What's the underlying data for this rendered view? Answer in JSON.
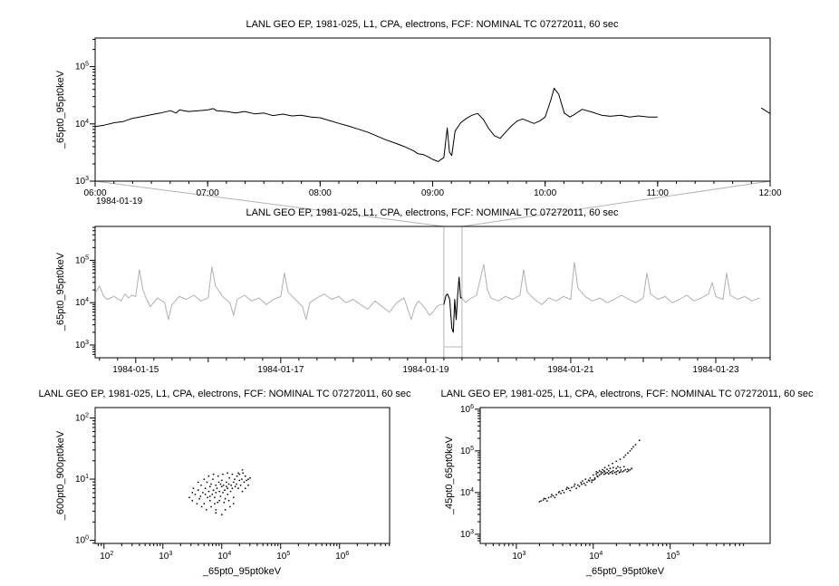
{
  "window": {
    "background": "#ffffff"
  },
  "colors": {
    "axis": "#000000",
    "series": "#000000",
    "context_line": "#b0b0b0",
    "highlight": "#000000",
    "connector": "#b4b4b4",
    "scatter": "#111111"
  },
  "chart_data": [
    {
      "id": "zoom-timeseries",
      "type": "line",
      "title": "LANL GEO EP, 1981-025, L1, CPA, electrons, FCF: NOMINAL TC 07272011, 60 sec",
      "ylabel": "_65pt0_95pt0keV",
      "xlabel": "",
      "x_context_label": "1984-01-19",
      "xlim": [
        6,
        12
      ],
      "x_minor_step": 0.1666667,
      "x_ticks": [
        {
          "v": 6,
          "label": "06:00"
        },
        {
          "v": 7,
          "label": "07:00"
        },
        {
          "v": 8,
          "label": "08:00"
        },
        {
          "v": 9,
          "label": "09:00"
        },
        {
          "v": 10,
          "label": "10:00"
        },
        {
          "v": 11,
          "label": "11:00"
        },
        {
          "v": 12,
          "label": "12:00"
        }
      ],
      "ylim_log": [
        3,
        5.5
      ],
      "ylog_ticks": [
        3,
        4,
        5
      ],
      "line_color": "#000000",
      "x": [
        6.0,
        6.08,
        6.17,
        6.25,
        6.33,
        6.42,
        6.5,
        6.58,
        6.67,
        6.72,
        6.75,
        6.83,
        6.92,
        7.0,
        7.05,
        7.08,
        7.17,
        7.25,
        7.33,
        7.42,
        7.5,
        7.58,
        7.67,
        7.75,
        7.83,
        7.92,
        8.0,
        8.08,
        8.17,
        8.25,
        8.33,
        8.42,
        8.5,
        8.58,
        8.67,
        8.75,
        8.83,
        8.87,
        8.92,
        8.97,
        9.0,
        9.05,
        9.1,
        9.13,
        9.15,
        9.17,
        9.2,
        9.25,
        9.3,
        9.35,
        9.4,
        9.45,
        9.5,
        9.55,
        9.6,
        9.65,
        9.7,
        9.75,
        9.8,
        9.85,
        9.9,
        9.95,
        10.0,
        10.05,
        10.08,
        10.12,
        10.17,
        10.22,
        10.25,
        10.3,
        10.33,
        10.42,
        10.5,
        10.58,
        10.67,
        10.75,
        10.83,
        10.92,
        11.0,
        11.5,
        11.92,
        11.97,
        12.0
      ],
      "y": [
        9000,
        9500,
        10500,
        11000,
        12500,
        13500,
        14500,
        15500,
        17000,
        15500,
        17500,
        16500,
        17000,
        17500,
        18500,
        17000,
        16500,
        15500,
        16500,
        15000,
        15500,
        14000,
        14800,
        13800,
        14200,
        13200,
        12800,
        11500,
        10200,
        9200,
        8200,
        7200,
        6200,
        5300,
        4600,
        4000,
        3400,
        3000,
        2900,
        2600,
        2400,
        2200,
        2600,
        8500,
        3200,
        2800,
        7500,
        10500,
        12500,
        14200,
        15200,
        12000,
        8200,
        6200,
        5600,
        7200,
        9200,
        11200,
        12200,
        11200,
        10200,
        11200,
        13200,
        26000,
        42000,
        33000,
        15500,
        13200,
        14200,
        16500,
        18000,
        16000,
        14200,
        13600,
        14200,
        13200,
        13800,
        13200,
        13200,
        null,
        19000,
        16500,
        15200
      ]
    },
    {
      "id": "context-timeseries",
      "type": "line",
      "title": "LANL GEO EP, 1981-025, L1, CPA, electrons, FCF: NOMINAL TC 07272011, 60 sec",
      "ylabel": "_65pt0_95pt0keV",
      "xlabel": "",
      "xlim": [
        14.44,
        23.75
      ],
      "x_minor_step": 0.25,
      "x_ticks": [
        {
          "v": 15,
          "label": "1984-01-15"
        },
        {
          "v": 17,
          "label": "1984-01-17"
        },
        {
          "v": 19,
          "label": "1984-01-19"
        },
        {
          "v": 21,
          "label": "1984-01-21"
        },
        {
          "v": 23,
          "label": "1984-01-23"
        }
      ],
      "ylim_log": [
        2.7,
        5.8
      ],
      "ylog_ticks": [
        3,
        4,
        5
      ],
      "line_color": "#b0b0b0",
      "highlight_range": [
        19.25,
        19.5
      ],
      "highlight_color": "#000000",
      "zoom_box": true,
      "x": [
        14.45,
        14.5,
        14.55,
        14.6,
        14.7,
        14.8,
        14.85,
        14.9,
        14.95,
        15.0,
        15.05,
        15.1,
        15.15,
        15.2,
        15.3,
        15.4,
        15.45,
        15.5,
        15.6,
        15.7,
        15.8,
        15.9,
        16.0,
        16.05,
        16.1,
        16.2,
        16.3,
        16.35,
        16.4,
        16.5,
        16.6,
        16.7,
        16.8,
        16.9,
        17.0,
        17.05,
        17.1,
        17.2,
        17.3,
        17.35,
        17.4,
        17.5,
        17.6,
        17.7,
        17.8,
        17.9,
        18.0,
        18.1,
        18.2,
        18.3,
        18.4,
        18.5,
        18.6,
        18.7,
        18.8,
        18.85,
        18.9,
        18.95,
        19.0,
        19.05,
        19.1,
        19.15,
        19.2,
        19.25,
        19.28,
        19.3,
        19.33,
        19.36,
        19.38,
        19.4,
        19.42,
        19.44,
        19.46,
        19.48,
        19.5,
        19.55,
        19.6,
        19.7,
        19.8,
        19.85,
        19.9,
        20.0,
        20.1,
        20.2,
        20.3,
        20.35,
        20.4,
        20.5,
        20.6,
        20.7,
        20.8,
        20.9,
        21.0,
        21.05,
        21.1,
        21.2,
        21.3,
        21.4,
        21.5,
        21.6,
        21.7,
        21.8,
        21.9,
        22.0,
        22.05,
        22.1,
        22.2,
        22.3,
        22.4,
        22.5,
        22.6,
        22.7,
        22.8,
        22.9,
        22.95,
        23.0,
        23.1,
        23.15,
        23.2,
        23.3,
        23.4,
        23.5,
        23.6
      ],
      "y": [
        18000,
        25000,
        15000,
        12000,
        14000,
        11000,
        16000,
        13000,
        15000,
        14000,
        60000,
        20000,
        12000,
        8000,
        13000,
        10000,
        4000,
        9000,
        14000,
        12000,
        15000,
        11000,
        13000,
        70000,
        25000,
        14000,
        10000,
        5000,
        12000,
        15000,
        11000,
        13000,
        9000,
        12000,
        14000,
        50000,
        18000,
        12000,
        8000,
        4000,
        10000,
        13000,
        16000,
        12000,
        14000,
        10000,
        12000,
        9000,
        7000,
        11000,
        8000,
        6000,
        10000,
        13000,
        4000,
        8000,
        11000,
        9000,
        7000,
        5000,
        6000,
        8000,
        9000,
        9000,
        15000,
        16000,
        12000,
        2500,
        2000,
        12000,
        4000,
        15000,
        40000,
        13000,
        13000,
        10000,
        12000,
        15000,
        80000,
        20000,
        13000,
        11000,
        14000,
        12000,
        15000,
        60000,
        18000,
        12000,
        9000,
        13000,
        11000,
        14000,
        12000,
        90000,
        22000,
        14000,
        11000,
        13000,
        10000,
        12000,
        15000,
        12000,
        10000,
        13000,
        50000,
        16000,
        12000,
        14000,
        10000,
        12000,
        15000,
        11000,
        13000,
        16000,
        30000,
        14000,
        12000,
        50000,
        15000,
        12000,
        14000,
        11000,
        13000
      ]
    },
    {
      "id": "scatter-600-900",
      "type": "scatter",
      "title": "LANL GEO EP, 1981-025, L1, CPA, electrons, FCF: NOMINAL TC 07272011, 60 sec",
      "xlabel": "_65pt0_95pt0keV",
      "ylabel": "_600pt0_900pt0keV",
      "xlim": [
        1.85,
        6.85
      ],
      "xlog_ticks": [
        2,
        3,
        4,
        5,
        6
      ],
      "ylim_log": [
        -0.05,
        2.17
      ],
      "ylog_ticks": [
        0,
        1,
        2
      ],
      "points_log10": [
        [
          3.45,
          0.7
        ],
        [
          3.5,
          0.65
        ],
        [
          3.5,
          0.78
        ],
        [
          3.52,
          0.85
        ],
        [
          3.55,
          0.75
        ],
        [
          3.58,
          0.6
        ],
        [
          3.6,
          0.82
        ],
        [
          3.6,
          0.95
        ],
        [
          3.62,
          0.68
        ],
        [
          3.64,
          0.72
        ],
        [
          3.65,
          0.9
        ],
        [
          3.66,
          0.55
        ],
        [
          3.68,
          0.78
        ],
        [
          3.7,
          0.6
        ],
        [
          3.7,
          1.0
        ],
        [
          3.72,
          0.85
        ],
        [
          3.72,
          0.75
        ],
        [
          3.74,
          0.5
        ],
        [
          3.75,
          0.95
        ],
        [
          3.76,
          0.7
        ],
        [
          3.78,
          0.8
        ],
        [
          3.78,
          1.05
        ],
        [
          3.8,
          0.88
        ],
        [
          3.8,
          0.65
        ],
        [
          3.8,
          0.72
        ],
        [
          3.82,
          0.92
        ],
        [
          3.82,
          0.55
        ],
        [
          3.84,
          0.75
        ],
        [
          3.85,
          1.0
        ],
        [
          3.86,
          0.82
        ],
        [
          3.86,
          1.08
        ],
        [
          3.88,
          0.7
        ],
        [
          3.88,
          0.6
        ],
        [
          3.9,
          0.9
        ],
        [
          3.9,
          0.78
        ],
        [
          3.9,
          0.5
        ],
        [
          3.9,
          0.45
        ],
        [
          3.92,
          0.85
        ],
        [
          3.93,
          0.62
        ],
        [
          3.94,
          1.05
        ],
        [
          3.95,
          0.95
        ],
        [
          3.96,
          0.8
        ],
        [
          3.96,
          0.65
        ],
        [
          3.98,
          0.72
        ],
        [
          3.98,
          0.92
        ],
        [
          4.0,
          0.88
        ],
        [
          4.0,
          0.98
        ],
        [
          4.0,
          0.42
        ],
        [
          4.02,
          0.78
        ],
        [
          4.02,
          1.08
        ],
        [
          4.03,
          0.9
        ],
        [
          4.04,
          0.62
        ],
        [
          4.05,
          0.82
        ],
        [
          4.06,
          0.68
        ],
        [
          4.06,
          0.5
        ],
        [
          4.08,
          0.95
        ],
        [
          4.08,
          0.88
        ],
        [
          4.1,
          0.85
        ],
        [
          4.1,
          0.75
        ],
        [
          4.1,
          1.1
        ],
        [
          4.12,
          0.92
        ],
        [
          4.12,
          0.65
        ],
        [
          4.13,
          1.02
        ],
        [
          4.14,
          0.55
        ],
        [
          4.15,
          0.8
        ],
        [
          4.16,
          0.9
        ],
        [
          4.18,
          0.85
        ],
        [
          4.18,
          1.08
        ],
        [
          4.2,
          0.95
        ],
        [
          4.2,
          0.7
        ],
        [
          4.2,
          0.6
        ],
        [
          4.22,
          1.0
        ],
        [
          4.23,
          0.88
        ],
        [
          4.25,
          0.92
        ],
        [
          4.26,
          1.05
        ],
        [
          4.28,
          0.85
        ],
        [
          4.28,
          1.1
        ],
        [
          4.3,
          0.98
        ],
        [
          4.3,
          1.08
        ],
        [
          4.32,
          0.9
        ],
        [
          4.34,
          1.0
        ],
        [
          4.35,
          0.8
        ],
        [
          4.35,
          1.15
        ],
        [
          4.36,
          1.1
        ],
        [
          4.38,
          0.95
        ],
        [
          4.4,
          1.05
        ],
        [
          4.4,
          0.85
        ],
        [
          4.42,
          0.98
        ],
        [
          4.45,
          1.0
        ],
        [
          4.45,
          0.9
        ],
        [
          4.48,
          1.02
        ]
      ]
    },
    {
      "id": "scatter-45-65",
      "type": "scatter",
      "title": "LANL GEO EP, 1981-025, L1, CPA, electrons, FCF: NOMINAL TC 07272011, 60 sec",
      "xlabel": "_65pt0_95pt0keV",
      "ylabel": "_45pt0_65pt0keV",
      "xlim": [
        2.53,
        6.3
      ],
      "xlog_ticks": [
        3,
        4,
        5
      ],
      "ylim_log": [
        2.78,
        6.04
      ],
      "ylog_ticks": [
        3,
        4,
        5,
        6
      ],
      "points_log10": [
        [
          3.3,
          3.78
        ],
        [
          3.32,
          3.8
        ],
        [
          3.35,
          3.82
        ],
        [
          3.36,
          3.86
        ],
        [
          3.38,
          3.85
        ],
        [
          3.4,
          3.8
        ],
        [
          3.42,
          3.88
        ],
        [
          3.45,
          3.9
        ],
        [
          3.46,
          3.95
        ],
        [
          3.48,
          3.92
        ],
        [
          3.5,
          3.88
        ],
        [
          3.52,
          3.95
        ],
        [
          3.55,
          4.0
        ],
        [
          3.56,
          4.02
        ],
        [
          3.58,
          3.98
        ],
        [
          3.6,
          4.05
        ],
        [
          3.62,
          4.0
        ],
        [
          3.65,
          4.08
        ],
        [
          3.66,
          4.12
        ],
        [
          3.68,
          4.1
        ],
        [
          3.7,
          4.05
        ],
        [
          3.72,
          4.12
        ],
        [
          3.75,
          4.15
        ],
        [
          3.76,
          4.2
        ],
        [
          3.78,
          4.1
        ],
        [
          3.8,
          4.18
        ],
        [
          3.82,
          4.15
        ],
        [
          3.84,
          4.24
        ],
        [
          3.85,
          4.2
        ],
        [
          3.86,
          4.28
        ],
        [
          3.88,
          4.22
        ],
        [
          3.9,
          4.18
        ],
        [
          3.9,
          4.32
        ],
        [
          3.92,
          4.25
        ],
        [
          3.94,
          4.3
        ],
        [
          3.95,
          4.28
        ],
        [
          3.96,
          4.35
        ],
        [
          3.98,
          4.25
        ],
        [
          3.98,
          4.3
        ],
        [
          4.0,
          4.3
        ],
        [
          4.0,
          4.42
        ],
        [
          4.02,
          4.35
        ],
        [
          4.02,
          4.32
        ],
        [
          4.04,
          4.45
        ],
        [
          4.04,
          4.5
        ],
        [
          4.05,
          4.4
        ],
        [
          4.06,
          4.48
        ],
        [
          4.06,
          4.38
        ],
        [
          4.08,
          4.42
        ],
        [
          4.08,
          4.52
        ],
        [
          4.1,
          4.45
        ],
        [
          4.1,
          4.5
        ],
        [
          4.12,
          4.48
        ],
        [
          4.12,
          4.55
        ],
        [
          4.14,
          4.44
        ],
        [
          4.14,
          4.52
        ],
        [
          4.15,
          4.5
        ],
        [
          4.16,
          4.46
        ],
        [
          4.18,
          4.48
        ],
        [
          4.18,
          4.56
        ],
        [
          4.2,
          4.45
        ],
        [
          4.2,
          4.52
        ],
        [
          4.22,
          4.48
        ],
        [
          4.22,
          4.58
        ],
        [
          4.24,
          4.5
        ],
        [
          4.25,
          4.46
        ],
        [
          4.26,
          4.52
        ],
        [
          4.26,
          4.6
        ],
        [
          4.28,
          4.48
        ],
        [
          4.3,
          4.5
        ],
        [
          4.3,
          4.44
        ],
        [
          4.3,
          4.58
        ],
        [
          4.32,
          4.52
        ],
        [
          4.32,
          4.62
        ],
        [
          4.34,
          4.48
        ],
        [
          4.35,
          4.5
        ],
        [
          4.35,
          4.6
        ],
        [
          4.36,
          4.54
        ],
        [
          4.38,
          4.5
        ],
        [
          4.4,
          4.52
        ],
        [
          4.4,
          4.62
        ],
        [
          4.42,
          4.55
        ],
        [
          4.44,
          4.5
        ],
        [
          4.45,
          4.56
        ],
        [
          4.46,
          4.52
        ],
        [
          4.48,
          4.55
        ],
        [
          4.5,
          4.58
        ],
        [
          4.15,
          4.6
        ],
        [
          4.2,
          4.65
        ],
        [
          4.25,
          4.7
        ],
        [
          4.3,
          4.75
        ],
        [
          4.35,
          4.8
        ],
        [
          4.4,
          4.85
        ],
        [
          4.42,
          4.9
        ],
        [
          4.45,
          4.95
        ],
        [
          4.48,
          5.0
        ],
        [
          4.5,
          5.05
        ],
        [
          4.52,
          5.1
        ],
        [
          4.55,
          5.15
        ],
        [
          4.6,
          5.25
        ]
      ]
    }
  ]
}
